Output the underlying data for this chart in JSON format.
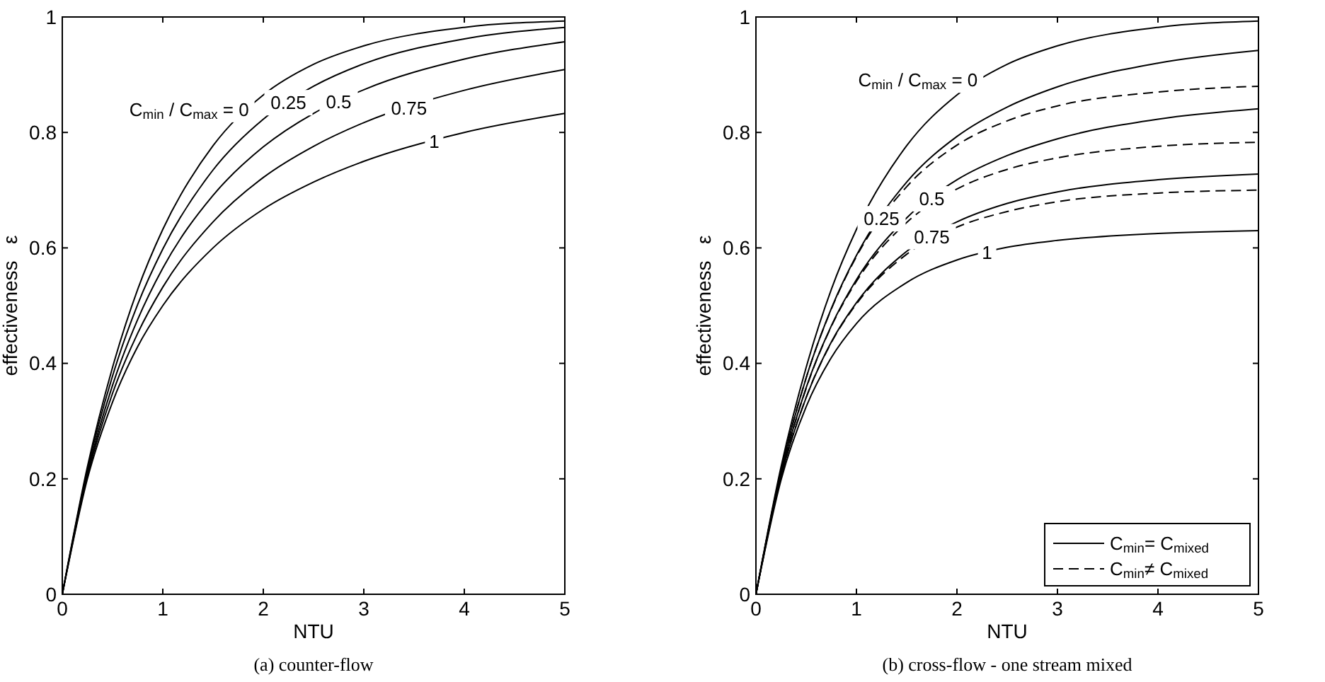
{
  "chart_data": [
    {
      "type": "line",
      "subtitle": "(a) counter-flow",
      "xlabel": "NTU",
      "ylabel": "effectiveness   ε",
      "xlim": [
        0,
        5
      ],
      "ylim": [
        0,
        1
      ],
      "xticks": [
        0,
        1,
        2,
        3,
        4,
        5
      ],
      "yticks": [
        0,
        0.2,
        0.4,
        0.6,
        0.8,
        1
      ],
      "grid": false,
      "legend": false,
      "marker": "none",
      "x": [
        0,
        0.25,
        0.5,
        0.75,
        1,
        1.5,
        2,
        2.5,
        3,
        4,
        5
      ],
      "series": [
        {
          "color": "#000000",
          "line_style": "solid",
          "values": [
            0,
            0.221,
            0.393,
            0.528,
            0.632,
            0.777,
            0.865,
            0.918,
            0.95,
            0.982,
            0.993
          ]
        },
        {
          "color": "#000000",
          "line_style": "solid",
          "values": [
            0,
            0.216,
            0.378,
            0.502,
            0.598,
            0.735,
            0.823,
            0.88,
            0.919,
            0.962,
            0.982
          ]
        },
        {
          "color": "#000000",
          "line_style": "solid",
          "values": [
            0,
            0.21,
            0.362,
            0.476,
            0.565,
            0.691,
            0.775,
            0.833,
            0.874,
            0.927,
            0.957
          ]
        },
        {
          "color": "#000000",
          "line_style": "solid",
          "values": [
            0,
            0.205,
            0.348,
            0.452,
            0.532,
            0.645,
            0.722,
            0.776,
            0.817,
            0.873,
            0.909
          ]
        },
        {
          "color": "#000000",
          "line_style": "solid",
          "values": [
            0,
            0.2,
            0.333,
            0.429,
            0.5,
            0.6,
            0.667,
            0.714,
            0.75,
            0.8,
            0.833
          ]
        }
      ],
      "annotations": [
        "C$_{min}$ / C$_{max}$ = 0",
        "0.25",
        "0.5",
        "0.75",
        "1"
      ]
    },
    {
      "type": "line",
      "subtitle": "(b) cross-flow - one stream mixed",
      "xlabel": "NTU",
      "ylabel": "effectiveness   ε",
      "xlim": [
        0,
        5
      ],
      "ylim": [
        0,
        1
      ],
      "xticks": [
        0,
        1,
        2,
        3,
        4,
        5
      ],
      "yticks": [
        0,
        0.2,
        0.4,
        0.6,
        0.8,
        1
      ],
      "grid": false,
      "legend": "bottom right",
      "marker": "none",
      "x": [
        0,
        0.25,
        0.5,
        0.75,
        1,
        1.5,
        2,
        2.5,
        3,
        4,
        5
      ],
      "series": [
        {
          "name": "C$_{min}$= C$_{mixed}$",
          "color": "#000000",
          "line_style": "solid",
          "values": [
            0,
            0.221,
            0.393,
            0.528,
            0.632,
            0.777,
            0.865,
            0.918,
            0.95,
            0.982,
            0.993
          ]
        },
        {
          "color": "#000000",
          "line_style": "solid",
          "values": [
            0,
            0.215,
            0.375,
            0.495,
            0.587,
            0.714,
            0.793,
            0.844,
            0.879,
            0.92,
            0.942
          ]
        },
        {
          "color": "#000000",
          "line_style": "solid",
          "values": [
            0,
            0.209,
            0.358,
            0.465,
            0.545,
            0.652,
            0.718,
            0.76,
            0.789,
            0.823,
            0.841
          ]
        },
        {
          "color": "#000000",
          "line_style": "solid",
          "values": [
            0,
            0.204,
            0.341,
            0.437,
            0.505,
            0.594,
            0.645,
            0.677,
            0.697,
            0.718,
            0.728
          ]
        },
        {
          "color": "#000000",
          "line_style": "solid",
          "values": [
            0,
            0.198,
            0.325,
            0.41,
            0.469,
            0.54,
            0.579,
            0.601,
            0.613,
            0.625,
            0.63
          ]
        },
        {
          "name": "C$_{min}$≠ C$_{mixed}$",
          "color": "#000000",
          "line_style": "dashed",
          "values": [
            0,
            0.215,
            0.375,
            0.494,
            0.585,
            0.706,
            0.778,
            0.82,
            0.846,
            0.87,
            0.88
          ]
        },
        {
          "color": "#000000",
          "line_style": "dashed",
          "values": [
            0,
            0.209,
            0.357,
            0.464,
            0.542,
            0.644,
            0.702,
            0.736,
            0.756,
            0.776,
            0.783
          ]
        },
        {
          "color": "#000000",
          "line_style": "dashed",
          "values": [
            0,
            0.204,
            0.341,
            0.436,
            0.503,
            0.589,
            0.636,
            0.663,
            0.68,
            0.695,
            0.7
          ]
        }
      ],
      "annotations": [
        "C$_{min}$ / C$_{max}$ = 0",
        "0.25",
        "0.5",
        "0.75",
        "1"
      ]
    }
  ]
}
